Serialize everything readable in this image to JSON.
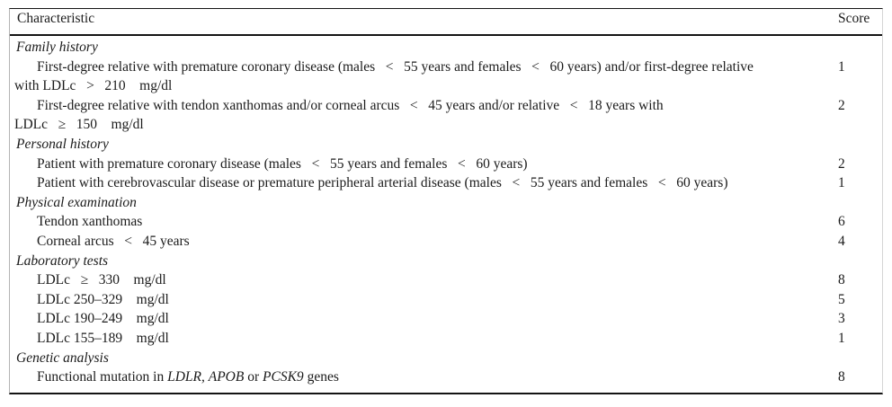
{
  "colors": {
    "background": "#ffffff",
    "text": "#1b1b1b",
    "horizontal_rule": "#141414",
    "frame_left": "#b4b4b4",
    "frame_right": "#d4d4d4"
  },
  "table": {
    "header": {
      "characteristic": "Characteristic",
      "score": "Score"
    },
    "sections": [
      {
        "title": "Family history",
        "rows": [
          {
            "lines": [
              "First-degree relative with premature coronary disease (males   <   55 years and females   <   60 years) and/or first-degree relative",
              "with LDLc   >   210    mg/dl"
            ],
            "score": "1"
          },
          {
            "lines": [
              "First-degree relative with tendon xanthomas and/or corneal arcus   <   45 years and/or relative   <   18 years with",
              "LDLc   ≥   150    mg/dl"
            ],
            "score": "2"
          }
        ]
      },
      {
        "title": "Personal history",
        "rows": [
          {
            "lines": [
              "Patient with premature coronary disease (males   <   55 years and females   <   60 years)"
            ],
            "score": "2"
          },
          {
            "lines": [
              "Patient with cerebrovascular disease or premature peripheral arterial disease (males   <   55 years and females   <   60 years)"
            ],
            "score": "1"
          }
        ]
      },
      {
        "title": "Physical examination",
        "rows": [
          {
            "lines": [
              "Tendon xanthomas"
            ],
            "score": "6"
          },
          {
            "lines": [
              "Corneal arcus   <   45 years"
            ],
            "score": "4"
          }
        ]
      },
      {
        "title": "Laboratory tests",
        "rows": [
          {
            "lines": [
              "LDLc   ≥   330    mg/dl"
            ],
            "score": "8"
          },
          {
            "lines": [
              "LDLc 250–329    mg/dl"
            ],
            "score": "5"
          },
          {
            "lines": [
              "LDLc 190–249    mg/dl"
            ],
            "score": "3"
          },
          {
            "lines": [
              "LDLc 155–189    mg/dl"
            ],
            "score": "1"
          }
        ]
      },
      {
        "title": "Genetic analysis",
        "rows": [
          {
            "segments": [
              {
                "text": "Functional mutation in "
              },
              {
                "text": "LDLR,",
                "italic": true
              },
              {
                "text": " "
              },
              {
                "text": "APOB",
                "italic": true
              },
              {
                "text": " or "
              },
              {
                "text": "PCSK9",
                "italic": true
              },
              {
                "text": " genes"
              }
            ],
            "score": "8"
          }
        ]
      }
    ]
  }
}
